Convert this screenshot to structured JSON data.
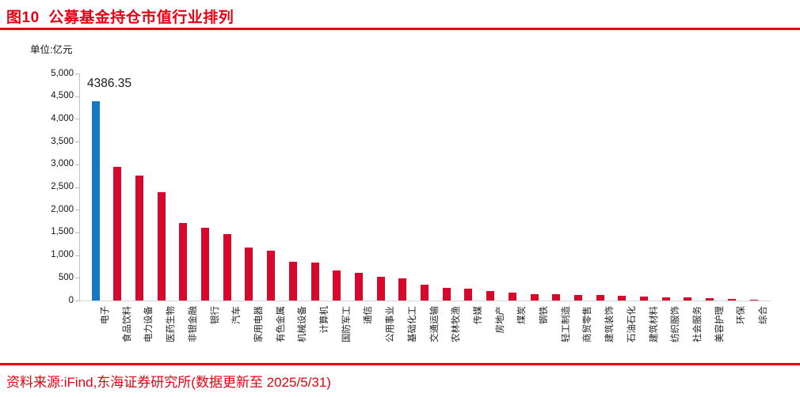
{
  "page": {
    "title": "图10  公募基金持仓市值行业排列",
    "unit_label": "单位:亿元",
    "source_note": "资料来源:iFind,东海证券研究所(数据更新至 2025/5/31)"
  },
  "colors": {
    "accent_red": "#e60012",
    "bar_red": "#d8082d",
    "bar_blue": "#1778c2",
    "axis_gray": "#c2c2c2",
    "label_black": "#1a1a1a"
  },
  "chart_data": {
    "type": "bar",
    "title": "公募基金持仓市值行业排列",
    "xlabel": "",
    "ylabel": "亿元",
    "ylim": [
      0,
      5000
    ],
    "grid": false,
    "legend": "none",
    "bar_color": "#d8082d",
    "highlight": {
      "index": 0,
      "color": "#1778c2",
      "data_label": "4386.35"
    },
    "yticks": [
      {
        "value": 0,
        "label": "0"
      },
      {
        "value": 500,
        "label": "500"
      },
      {
        "value": 1000,
        "label": "1,000"
      },
      {
        "value": 1500,
        "label": "1,500"
      },
      {
        "value": 2000,
        "label": "2,000"
      },
      {
        "value": 2500,
        "label": "2,500"
      },
      {
        "value": 3000,
        "label": "3,000"
      },
      {
        "value": 3500,
        "label": "3,500"
      },
      {
        "value": 4000,
        "label": "4,000"
      },
      {
        "value": 4500,
        "label": "4,500"
      },
      {
        "value": 5000,
        "label": "5,000"
      }
    ],
    "categories": [
      "电子",
      "食品饮料",
      "电力设备",
      "医药生物",
      "非银金融",
      "银行",
      "汽车",
      "家用电器",
      "有色金属",
      "机械设备",
      "计算机",
      "国防军工",
      "通信",
      "公用事业",
      "基础化工",
      "交通运输",
      "农林牧渔",
      "传媒",
      "房地产",
      "煤炭",
      "钢铁",
      "轻工制造",
      "商贸零售",
      "建筑装饰",
      "石油石化",
      "建筑材料",
      "纺织服饰",
      "社会服务",
      "美容护理",
      "环保",
      "综合"
    ],
    "values": [
      4386.35,
      2940,
      2760,
      2390,
      1710,
      1605,
      1460,
      1165,
      1100,
      860,
      840,
      655,
      610,
      525,
      490,
      355,
      285,
      260,
      210,
      175,
      140,
      135,
      125,
      115,
      105,
      95,
      75,
      65,
      55,
      40,
      20
    ]
  }
}
